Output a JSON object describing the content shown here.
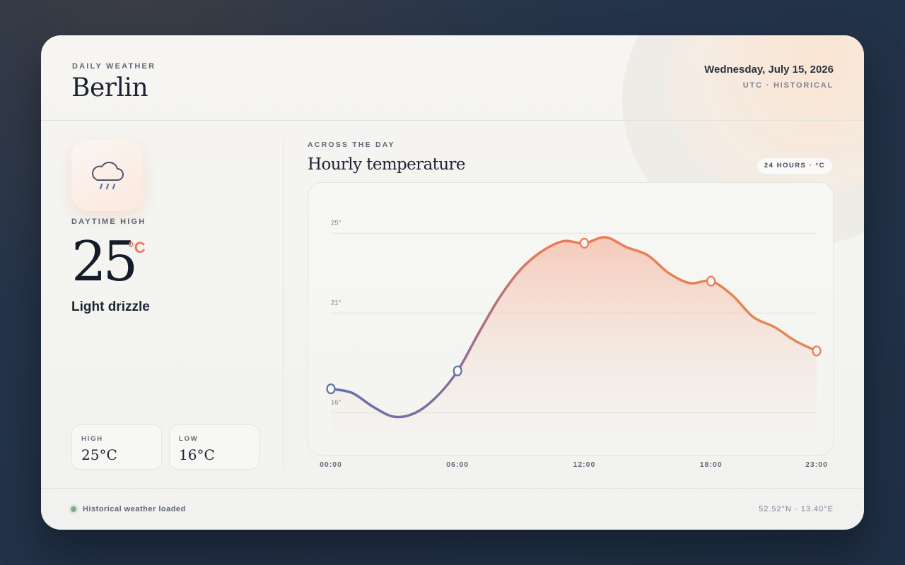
{
  "header": {
    "eyebrow": "DAILY WEATHER",
    "city": "Berlin",
    "date": "Wednesday, July 15, 2026",
    "timezone": "UTC · HISTORICAL"
  },
  "summary": {
    "icon": "cloud-drizzle-icon",
    "label": "DAYTIME HIGH",
    "temp": "25",
    "unit": "°C",
    "condition": "Light drizzle",
    "high_label": "HIGH",
    "high_value": "25°C",
    "low_label": "LOW",
    "low_value": "16°C"
  },
  "chart_section": {
    "eyebrow": "ACROSS THE DAY",
    "title": "Hourly temperature",
    "badge": "24 HOURS · °C"
  },
  "chart_data": {
    "type": "line",
    "x": [
      0,
      1,
      2,
      3,
      4,
      5,
      6,
      7,
      8,
      9,
      10,
      11,
      12,
      13,
      14,
      15,
      16,
      17,
      18,
      19,
      20,
      21,
      22,
      23
    ],
    "values": [
      17.2,
      17.0,
      16.3,
      15.8,
      16.0,
      16.8,
      18.1,
      20.0,
      21.8,
      23.2,
      24.1,
      24.6,
      24.5,
      24.8,
      24.3,
      23.9,
      23.0,
      22.5,
      22.6,
      21.9,
      20.8,
      20.3,
      19.6,
      19.1
    ],
    "marked_points": [
      0,
      6,
      12,
      18,
      23
    ],
    "ylim": [
      14,
      26
    ],
    "yticks": [
      16,
      21,
      25
    ],
    "ytick_labels": [
      "16°",
      "21°",
      "25°"
    ],
    "xtick_positions": [
      0,
      6,
      12,
      18,
      23
    ],
    "xtick_labels": [
      "00:00",
      "06:00",
      "12:00",
      "18:00",
      "23:00"
    ],
    "colors": {
      "cool": "#5b72b0",
      "warm": "#ec7a57"
    },
    "grid": true
  },
  "footer": {
    "status": "Historical weather loaded",
    "coords": "52.52°N · 13.40°E"
  }
}
